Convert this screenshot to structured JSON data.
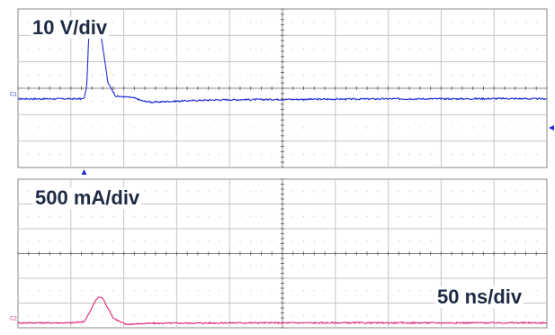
{
  "chart_data": [
    {
      "type": "line",
      "panel": "top",
      "channel_label": "C1",
      "scale_label": "10 V/div",
      "color": "#1f2bd6",
      "grid": true,
      "divisions": {
        "x": 10,
        "y": 6
      },
      "ylim_div": [
        -2.6,
        3.4
      ],
      "xlim_div": [
        -1.25,
        8.75
      ],
      "series": [
        {
          "points": [
            [
              -1.25,
              0.0
            ],
            [
              0.0,
              0.0
            ],
            [
              0.05,
              0.5
            ],
            [
              0.1,
              2.9
            ],
            [
              0.2,
              2.95
            ],
            [
              0.3,
              2.7
            ],
            [
              0.38,
              1.6
            ],
            [
              0.45,
              0.6
            ],
            [
              0.6,
              0.1
            ],
            [
              0.9,
              0.05
            ],
            [
              1.0,
              0.0
            ],
            [
              1.1,
              -0.08
            ],
            [
              1.3,
              -0.13
            ],
            [
              1.6,
              -0.1
            ],
            [
              2.0,
              -0.07
            ],
            [
              2.5,
              -0.04
            ],
            [
              3.0,
              -0.03
            ],
            [
              4.0,
              -0.02
            ],
            [
              5.0,
              -0.01
            ],
            [
              6.0,
              0.0
            ],
            [
              7.0,
              0.0
            ],
            [
              8.0,
              0.01
            ],
            [
              8.75,
              0.0
            ]
          ]
        }
      ]
    },
    {
      "type": "line",
      "panel": "bottom",
      "channel_label": "C2",
      "scale_label": "500 mA/div",
      "color": "#e0287f",
      "grid": true,
      "divisions": {
        "x": 10,
        "y": 6
      },
      "ylim_div": [
        -0.2,
        5.8
      ],
      "xlim_div": [
        -1.25,
        8.75
      ],
      "series": [
        {
          "points": [
            [
              -1.25,
              0.0
            ],
            [
              -0.2,
              0.0
            ],
            [
              0.0,
              0.05
            ],
            [
              0.1,
              0.4
            ],
            [
              0.2,
              0.85
            ],
            [
              0.28,
              1.05
            ],
            [
              0.35,
              1.0
            ],
            [
              0.45,
              0.6
            ],
            [
              0.55,
              0.2
            ],
            [
              0.7,
              0.02
            ],
            [
              0.8,
              -0.06
            ],
            [
              1.0,
              -0.04
            ],
            [
              1.3,
              -0.02
            ],
            [
              2.0,
              -0.01
            ],
            [
              3.0,
              0.0
            ],
            [
              5.0,
              0.0
            ],
            [
              7.0,
              0.0
            ],
            [
              8.75,
              0.0
            ]
          ]
        }
      ]
    }
  ],
  "time_scale_label": "50 ns/div"
}
